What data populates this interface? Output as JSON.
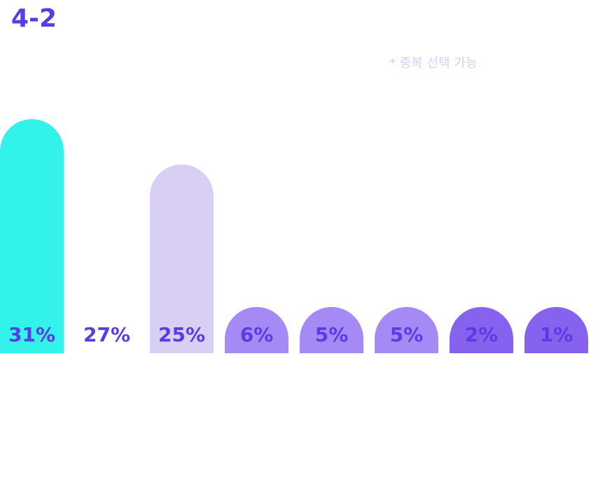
{
  "header": {
    "title": "4-2"
  },
  "note": "* 중복 선택 가능",
  "chart_data": {
    "type": "bar",
    "categories": [],
    "values": [
      31,
      27,
      25,
      6,
      5,
      5,
      2,
      1
    ],
    "labels": [
      "31%",
      "27%",
      "25%",
      "6%",
      "5%",
      "5%",
      "2%",
      "1%"
    ],
    "colors": [
      "#33f2ea",
      "#ffffff",
      "#d9cff4",
      "#a58af6",
      "#a58af6",
      "#a58af6",
      "#8762ee",
      "#8762ee"
    ],
    "label_color": "#5b3be6",
    "title": "",
    "xlabel": "",
    "ylabel": "",
    "grid": false
  }
}
